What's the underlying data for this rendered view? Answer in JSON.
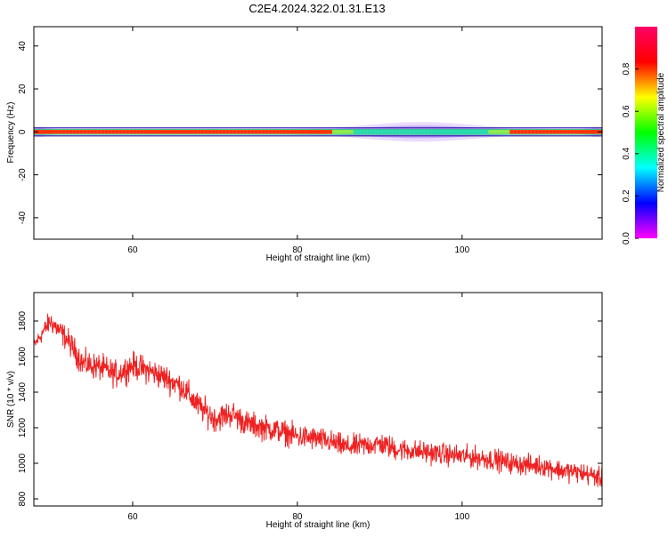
{
  "figure": {
    "title": "C2E4.2024.322.01.31.E13"
  },
  "chart_data": [
    {
      "type": "heatmap",
      "xlabel": "Height of straight line (km)",
      "ylabel": "Frequency (Hz)",
      "xlim": [
        48,
        117
      ],
      "ylim": [
        -50,
        49
      ],
      "xticks": [
        60,
        80,
        100
      ],
      "yticks": [
        -40,
        -20,
        0,
        20,
        40
      ],
      "band_center_hz": 0,
      "colorbar": {
        "label": "Normalized spectral amplitude",
        "range": [
          0,
          1
        ],
        "ticks": [
          0.0,
          0.2,
          0.4,
          0.6,
          0.8
        ],
        "colormap": [
          "#ff00ff",
          "#0000ff",
          "#00ffff",
          "#00ff00",
          "#ffff00",
          "#ff0000",
          "#ff0066"
        ]
      },
      "grid": false
    },
    {
      "type": "line",
      "xlabel": "Height of straight line (km)",
      "ylabel": "SNR (10 * v/v)",
      "xlim": [
        48,
        117
      ],
      "ylim": [
        760,
        1960
      ],
      "xticks": [
        60,
        80,
        100
      ],
      "yticks": [
        800,
        1000,
        1200,
        1400,
        1600,
        1800
      ],
      "series": [
        {
          "color": "#ee2222",
          "x": [
            48,
            50,
            52,
            54,
            56,
            58,
            60,
            62,
            64,
            66,
            68,
            70,
            72,
            74,
            76,
            78,
            80,
            82,
            84,
            86,
            88,
            90,
            92,
            94,
            96,
            98,
            100,
            102,
            104,
            106,
            108,
            110,
            112,
            114,
            116,
            117
          ],
          "y": [
            1660,
            1800,
            1700,
            1560,
            1540,
            1500,
            1550,
            1520,
            1480,
            1430,
            1320,
            1250,
            1280,
            1220,
            1200,
            1180,
            1150,
            1140,
            1120,
            1090,
            1100,
            1110,
            1080,
            1070,
            1060,
            1050,
            1040,
            1030,
            1020,
            1000,
            990,
            985,
            960,
            950,
            930,
            910
          ],
          "spread": [
            60,
            90,
            100,
            110,
            110,
            110,
            110,
            110,
            110,
            110,
            110,
            110,
            110,
            105,
            105,
            100,
            100,
            100,
            95,
            95,
            95,
            95,
            95,
            90,
            90,
            90,
            90,
            90,
            90,
            85,
            85,
            85,
            85,
            85,
            85,
            80
          ]
        }
      ]
    }
  ]
}
